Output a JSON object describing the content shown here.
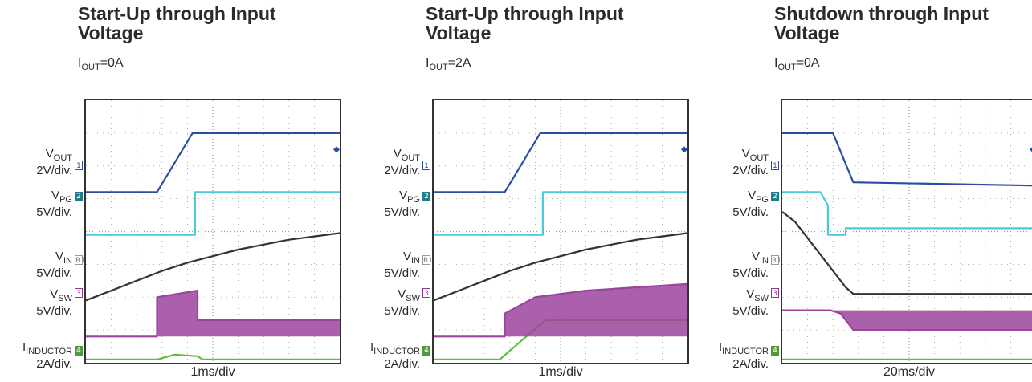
{
  "panels": [
    {
      "title": "Start-Up through Input Voltage",
      "condition": {
        "base": "I",
        "sub": "OUT",
        "value": "=0A"
      },
      "time_div": "1ms/div",
      "channels": [
        {
          "sym": "V",
          "sub": "OUT",
          "scale": "2V/div.",
          "num": "1"
        },
        {
          "sym": "V",
          "sub": "PG",
          "scale": "5V/div.",
          "num": "2"
        },
        {
          "sym": "V",
          "sub": "IN",
          "scale": "5V/div.",
          "num": "R1"
        },
        {
          "sym": "V",
          "sub": "SW",
          "scale": "5V/div.",
          "num": "3"
        },
        {
          "sym": "I",
          "sub": "INDUCTOR",
          "scale": "2A/div.",
          "num": "4"
        }
      ]
    },
    {
      "title": "Start-Up through Input Voltage",
      "condition": {
        "base": "I",
        "sub": "OUT",
        "value": "=2A"
      },
      "time_div": "1ms/div",
      "channels": [
        {
          "sym": "V",
          "sub": "OUT",
          "scale": "2V/div.",
          "num": "1"
        },
        {
          "sym": "V",
          "sub": "PG",
          "scale": "5V/div.",
          "num": "2"
        },
        {
          "sym": "V",
          "sub": "IN",
          "scale": "5V/div.",
          "num": "R1"
        },
        {
          "sym": "V",
          "sub": "SW",
          "scale": "5V/div.",
          "num": "3"
        },
        {
          "sym": "I",
          "sub": "INDUCTOR",
          "scale": "2A/div.",
          "num": "4"
        }
      ]
    },
    {
      "title": "Shutdown through Input Voltage",
      "condition": {
        "base": "I",
        "sub": "OUT",
        "value": "=0A"
      },
      "time_div": "20ms/div",
      "channels": [
        {
          "sym": "V",
          "sub": "OUT",
          "scale": "2V/div.",
          "num": "1"
        },
        {
          "sym": "V",
          "sub": "PG",
          "scale": "5V/div.",
          "num": "2"
        },
        {
          "sym": "V",
          "sub": "IN",
          "scale": "5V/div.",
          "num": "R1"
        },
        {
          "sym": "V",
          "sub": "SW",
          "scale": "5V/div.",
          "num": "3"
        },
        {
          "sym": "I",
          "sub": "INDUCTOR",
          "scale": "2A/div.",
          "num": "4"
        }
      ]
    }
  ],
  "chart_data": [
    {
      "type": "line",
      "title": "Start-Up through Input Voltage",
      "subtitle": "IOUT=0A",
      "x_unit": "ms",
      "x_range": [
        0,
        10
      ],
      "y_unit": "div",
      "y_range": [
        0,
        8
      ],
      "grid": true,
      "series": [
        {
          "name": "VOUT",
          "color": "#2a4fa0",
          "x": [
            0,
            2.8,
            4.2,
            10
          ],
          "y": [
            5.2,
            5.2,
            7.0,
            7.0
          ]
        },
        {
          "name": "VPG",
          "color": "#4fc8d8",
          "x": [
            0,
            4.3,
            4.3,
            10
          ],
          "y": [
            3.9,
            3.9,
            5.2,
            5.2
          ]
        },
        {
          "name": "VIN",
          "color": "#333333",
          "x": [
            0,
            1,
            2,
            3,
            4,
            5,
            6,
            7,
            8,
            9,
            10
          ],
          "y": [
            1.9,
            2.2,
            2.5,
            2.8,
            3.05,
            3.25,
            3.45,
            3.6,
            3.75,
            3.85,
            3.95
          ]
        },
        {
          "name": "VSW",
          "color": "#9b449b",
          "x": [
            0,
            2.8,
            2.8,
            4.4,
            4.4,
            10
          ],
          "y": [
            0.8,
            0.8,
            2.0,
            2.2,
            1.3,
            1.3
          ]
        },
        {
          "name": "IINDUCTOR",
          "color": "#5cbf3a",
          "x": [
            0,
            2.8,
            3.5,
            4.4,
            4.6,
            10
          ],
          "y": [
            0.1,
            0.1,
            0.25,
            0.2,
            0.1,
            0.1
          ]
        }
      ]
    },
    {
      "type": "line",
      "title": "Start-Up through Input Voltage",
      "subtitle": "IOUT=2A",
      "x_unit": "ms",
      "x_range": [
        0,
        10
      ],
      "y_unit": "div",
      "y_range": [
        0,
        8
      ],
      "grid": true,
      "series": [
        {
          "name": "VOUT",
          "color": "#2a4fa0",
          "x": [
            0,
            2.8,
            4.2,
            10
          ],
          "y": [
            5.2,
            5.2,
            7.0,
            7.0
          ]
        },
        {
          "name": "VPG",
          "color": "#4fc8d8",
          "x": [
            0,
            4.3,
            4.3,
            10
          ],
          "y": [
            3.9,
            3.9,
            5.2,
            5.2
          ]
        },
        {
          "name": "VIN",
          "color": "#333333",
          "x": [
            0,
            1,
            2,
            3,
            4,
            5,
            6,
            7,
            8,
            9,
            10
          ],
          "y": [
            1.9,
            2.2,
            2.5,
            2.8,
            3.05,
            3.25,
            3.45,
            3.6,
            3.75,
            3.85,
            3.95
          ]
        },
        {
          "name": "VSW",
          "color": "#9b449b",
          "x": [
            0,
            2.8,
            2.8,
            4.0,
            6.0,
            8.0,
            10.0
          ],
          "y": [
            0.8,
            0.8,
            1.5,
            2.0,
            2.2,
            2.3,
            2.4
          ]
        },
        {
          "name": "IINDUCTOR",
          "color": "#5cbf3a",
          "x": [
            0,
            2.6,
            4.4,
            10
          ],
          "y": [
            0.1,
            0.1,
            1.3,
            1.3
          ]
        }
      ]
    },
    {
      "type": "line",
      "title": "Shutdown through Input Voltage",
      "subtitle": "IOUT=0A",
      "x_unit": "ms",
      "x_range": [
        0,
        200
      ],
      "y_unit": "div",
      "y_range": [
        0,
        8
      ],
      "grid": true,
      "series": [
        {
          "name": "VOUT",
          "color": "#2a4fa0",
          "x": [
            0,
            40,
            56,
            200
          ],
          "y": [
            7.0,
            7.0,
            5.5,
            5.4
          ]
        },
        {
          "name": "VPG",
          "color": "#4fc8d8",
          "x": [
            0,
            30,
            36,
            36,
            50,
            50,
            200
          ],
          "y": [
            5.2,
            5.2,
            4.8,
            3.9,
            3.9,
            4.1,
            4.1
          ]
        },
        {
          "name": "VIN",
          "color": "#333333",
          "x": [
            0,
            10,
            20,
            30,
            40,
            50,
            56,
            200
          ],
          "y": [
            4.6,
            4.3,
            3.8,
            3.3,
            2.8,
            2.3,
            2.1,
            2.1
          ]
        },
        {
          "name": "VSW",
          "color": "#9b449b",
          "x": [
            0,
            25,
            38,
            46,
            56,
            200
          ],
          "y": [
            1.6,
            1.6,
            1.6,
            1.5,
            1.0,
            1.0
          ]
        },
        {
          "name": "IINDUCTOR",
          "color": "#5cbf3a",
          "x": [
            0,
            200
          ],
          "y": [
            0.1,
            0.1
          ]
        }
      ]
    }
  ]
}
